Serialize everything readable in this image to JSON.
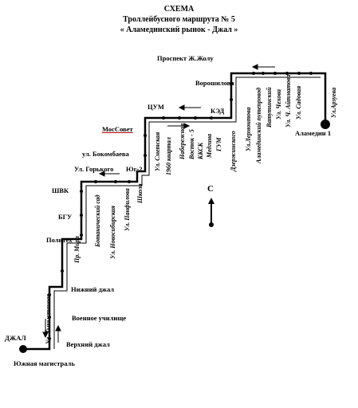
{
  "header": {
    "line1": "СХЕМА",
    "line2": "Троллейбусного маршрута   № 5",
    "line3": "« Аламединский рынок - Джал »"
  },
  "compass": "С",
  "horizontal_labels": {
    "prospect": "Проспект  Ж.Жолу",
    "voroshilova": "Ворошилова",
    "ked": "КЭД",
    "tsum": "ЦУМ",
    "mossovet": "МосСовет",
    "bokombaeva": "ул. Бокомбаева",
    "gorkogo": "Ул. Горького",
    "yug2": "Юг-2",
    "shvk": "ШВК",
    "bgu": "БГУ",
    "politeh": "Политех",
    "nizhniy_dzhal": "Нижний джал",
    "voennoe": "Военное училище",
    "verhniy_dzhal": "Верхний джал",
    "dzhal": "ДЖАЛ",
    "yuzhnaya": "Южная магистраль",
    "alamedin": "Аламедин 1"
  },
  "vertical_labels": {
    "arsenyu": "Ул.Арзуева",
    "sadovaya": "Ул. Садовая",
    "chuykova": "Ул. Ч. Айтматова",
    "chekhova": "Ул. Чехова",
    "vatutinskiy": "Ватутинский",
    "alamedinskiy": "Аламединский путепровод",
    "lermontova": "Ул.Лермонтова",
    "dzerzhinskogo": "Дзержинского",
    "gum": "ГУМ",
    "medicina": "Медгина",
    "kkc": "ККСК",
    "vostok5": "Восток - 5",
    "naberezhnaya": "Набережная",
    "s1960": "1960 квартал",
    "smetskaya": "Ул. Сметская",
    "shkola": "Школа",
    "panfilova": "Ул. Панфилова",
    "botanicheskiy": "Ботанический сад",
    "novosibirskaya": "Ул. Новосибирская",
    "pr_mira": "Пр. Мира",
    "tynystanova": "Ул. Тыныстанова"
  }
}
